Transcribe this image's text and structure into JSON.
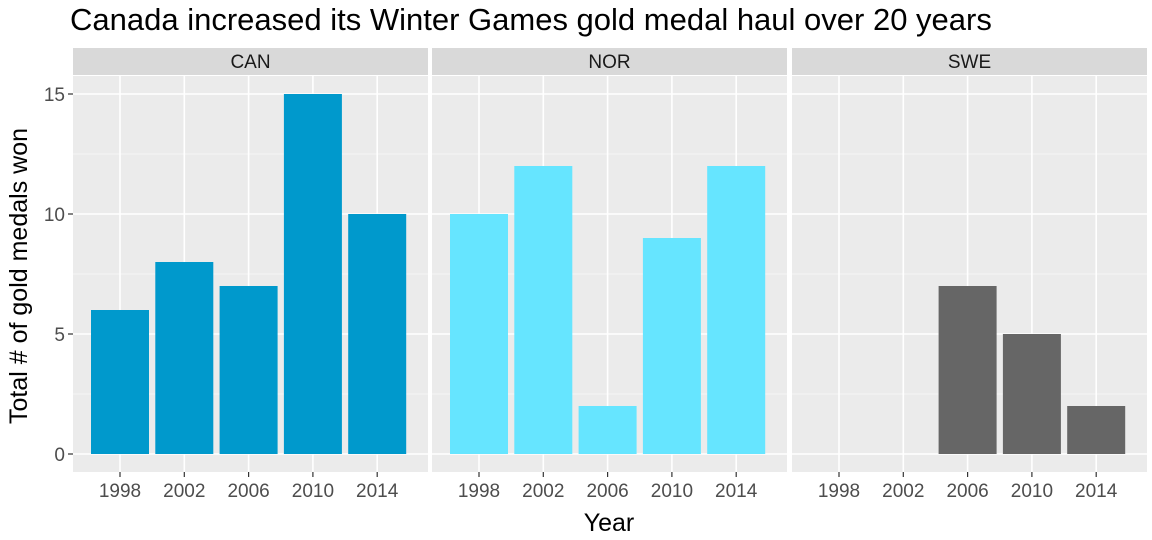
{
  "chart_data": {
    "type": "bar",
    "title": "Canada increased its Winter Games gold medal haul over 20 years",
    "xlabel": "Year",
    "ylabel": "Total # of gold medals won",
    "ylim": [
      0,
      16
    ],
    "yticks": [
      0,
      5,
      10,
      15
    ],
    "categories": [
      "1998",
      "2002",
      "2006",
      "2010",
      "2014"
    ],
    "facets": [
      {
        "name": "CAN",
        "color": "#0099CC",
        "values": [
          6,
          8,
          7,
          15,
          10
        ]
      },
      {
        "name": "NOR",
        "color": "#66E5FF",
        "values": [
          10,
          12,
          2,
          9,
          12
        ]
      },
      {
        "name": "SWE",
        "color": "#666666",
        "values": [
          0,
          0,
          7,
          5,
          2
        ]
      }
    ],
    "grid": true,
    "legend": "none"
  }
}
